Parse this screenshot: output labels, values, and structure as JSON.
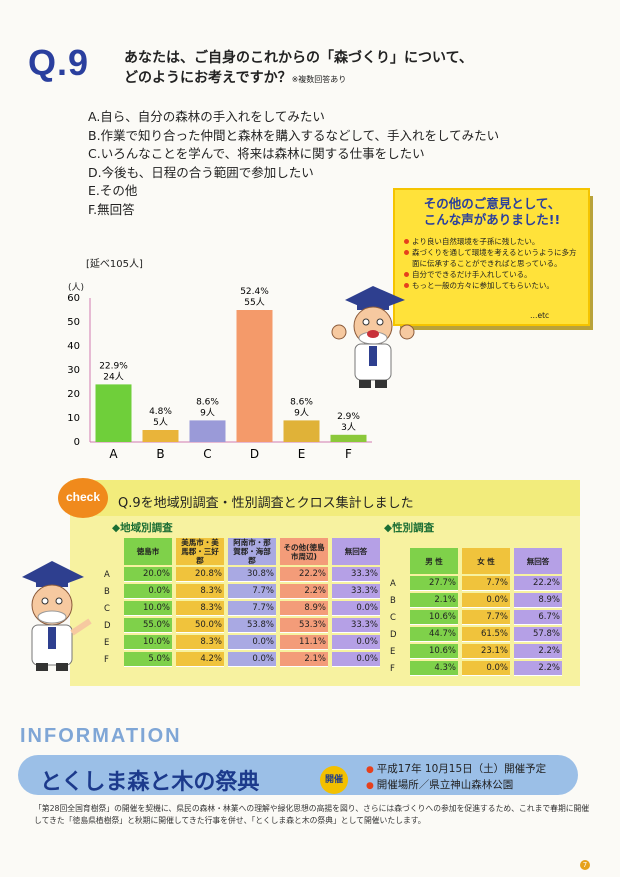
{
  "question": {
    "number": "Q.9",
    "title_line1": "あなたは、ご自身のこれからの「森づくり」について、",
    "title_line2": "どのようにお考えですか？",
    "note": "※複数回答あり",
    "options": [
      "A.自ら、自分の森林の手入れをしてみたい",
      "B.作業で知り合った仲間と森林を購入するなどして、手入れをしてみたい",
      "C.いろんなことを学んで、将来は森林に関する仕事をしたい",
      "D.今後も、日程の合う範囲で参加したい",
      "E.その他",
      "F.無回答"
    ]
  },
  "chart_data": {
    "type": "bar",
    "total_label": "[延べ105人]",
    "ylabel": "(人)",
    "ylim": [
      0,
      60
    ],
    "yticks": [
      "0",
      "10",
      "20",
      "30",
      "40",
      "50",
      "60"
    ],
    "categories": [
      "A",
      "B",
      "C",
      "D",
      "E",
      "F"
    ],
    "values": [
      24,
      5,
      9,
      55,
      9,
      3
    ],
    "percent_labels": [
      "22.9%",
      "4.8%",
      "8.6%",
      "52.4%",
      "8.6%",
      "2.9%"
    ],
    "count_labels": [
      "24人",
      "5人",
      "9人",
      "55人",
      "9人",
      "3人"
    ],
    "colors": [
      "#6fcf3a",
      "#e9b43a",
      "#9a9ad8",
      "#f49a6a",
      "#e0b238",
      "#8bc83a"
    ]
  },
  "opinions": {
    "title_line1": "その他のご意見として、",
    "title_line2": "こんな声がありました!!",
    "items": [
      "より良い自然環境を子孫に残したい。",
      "森づくりを通して環境を考えるというように多方面に伝承することができればと思っている。",
      "自分でできるだけ手入れしている。",
      "もっと一般の方々に参加してもらいたい。"
    ],
    "etc": "…etc"
  },
  "check": {
    "badge": "check",
    "title": "Q.9を地域別調査・性別調査とクロス集計しました",
    "regional": {
      "heading": "◆地域別調査",
      "headers": [
        "徳島市",
        "美馬市・美馬郡・三好郡",
        "阿南市・那賀郡・海部郡",
        "その他(徳島市周辺)",
        "無回答"
      ],
      "rows": [
        {
          "label": "A",
          "values": [
            "20.0%",
            "20.8%",
            "30.8%",
            "22.2%",
            "33.3%"
          ]
        },
        {
          "label": "B",
          "values": [
            "0.0%",
            "8.3%",
            "7.7%",
            "2.2%",
            "33.3%"
          ]
        },
        {
          "label": "C",
          "values": [
            "10.0%",
            "8.3%",
            "7.7%",
            "8.9%",
            "0.0%"
          ]
        },
        {
          "label": "D",
          "values": [
            "55.0%",
            "50.0%",
            "53.8%",
            "53.3%",
            "33.3%"
          ]
        },
        {
          "label": "E",
          "values": [
            "10.0%",
            "8.3%",
            "0.0%",
            "11.1%",
            "0.0%"
          ]
        },
        {
          "label": "F",
          "values": [
            "5.0%",
            "4.2%",
            "0.0%",
            "2.1%",
            "0.0%"
          ]
        }
      ],
      "col_colors": [
        "#7fd14a",
        "#f0c33c",
        "#a9a9e3",
        "#f39c79",
        "#b5a0e6"
      ]
    },
    "gender": {
      "heading": "◆性別調査",
      "headers": [
        "男 性",
        "女 性",
        "無回答"
      ],
      "rows": [
        {
          "label": "A",
          "values": [
            "27.7%",
            "7.7%",
            "22.2%"
          ]
        },
        {
          "label": "B",
          "values": [
            "2.1%",
            "0.0%",
            "8.9%"
          ]
        },
        {
          "label": "C",
          "values": [
            "10.6%",
            "7.7%",
            "6.7%"
          ]
        },
        {
          "label": "D",
          "values": [
            "44.7%",
            "61.5%",
            "57.8%"
          ]
        },
        {
          "label": "E",
          "values": [
            "10.6%",
            "23.1%",
            "2.2%"
          ]
        },
        {
          "label": "F",
          "values": [
            "4.3%",
            "0.0%",
            "2.2%"
          ]
        }
      ],
      "col_colors": [
        "#7fd14a",
        "#f0c33c",
        "#b5a0e6"
      ]
    }
  },
  "information": {
    "heading": "INFORMATION",
    "festival": "とくしま森と木の祭典",
    "badge": "開催",
    "date": "平成17年 10月15日（土）開催予定",
    "venue": "開催場所／県立神山森林公園",
    "description": "「第28回全国育樹祭」の開催を契機に、県民の森林・林業への理解や緑化思想の高揚を図り、さらには森づくりへの参加を促進するため、これまで春期に開催してきた「徳島県植樹祭」と秋期に開催してきた行事を併せ、「とくしま森と木の祭典」として開催いたします。"
  },
  "page_number": "7"
}
